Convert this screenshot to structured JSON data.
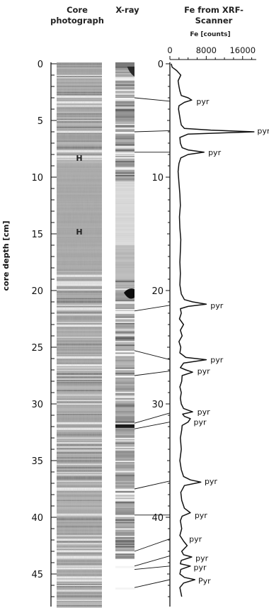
{
  "headers": {
    "core_photo": [
      "Core",
      "photograph"
    ],
    "xray": "X-ray",
    "fe_title": [
      "Fe from XRF-",
      "Scanner"
    ],
    "fe_units": "Fe [counts]"
  },
  "chart_data": {
    "type": "line",
    "ylabel": "core depth [cm]",
    "xlabel": "Fe [counts]",
    "depth_range": [
      0,
      47.5
    ],
    "fe_range": [
      0,
      19000
    ],
    "depth_ticks_left": [
      0,
      5,
      10,
      15,
      20,
      25,
      30,
      35,
      40,
      45
    ],
    "depth_ticks_right": [
      0,
      10,
      20,
      30,
      40
    ],
    "fe_ticks": [
      0,
      8000,
      16000
    ],
    "series": [
      {
        "depth": [
          0,
          0.3,
          0.6,
          1.0,
          1.5,
          2.0,
          2.4,
          2.8,
          3.0,
          3.2,
          3.4,
          3.7,
          4.0,
          4.5,
          5.0,
          5.4,
          5.7,
          5.85,
          6.0,
          6.2,
          6.5,
          7.0,
          7.4,
          7.6,
          7.8,
          8.0,
          8.3,
          8.8,
          9.5,
          10.5,
          11.5,
          12.5,
          13.5,
          14.5,
          15.5,
          16.5,
          17.5,
          18.5,
          19.5,
          20.3,
          20.8,
          21.0,
          21.2,
          21.4,
          21.6,
          22.0,
          22.5,
          23.0,
          23.5,
          24.0,
          24.5,
          25.0,
          25.5,
          25.9,
          26.1,
          26.4,
          26.8,
          27.0,
          27.2,
          27.5,
          28.0,
          28.5,
          29.0,
          29.5,
          30.0,
          30.4,
          30.7,
          30.9,
          31.1,
          31.3,
          31.6,
          31.9,
          32.3,
          33.0,
          34.0,
          35.0,
          35.8,
          36.4,
          36.7,
          36.9,
          37.2,
          37.8,
          38.5,
          39.2,
          39.6,
          39.9,
          40.3,
          41.0,
          41.6,
          42.1,
          42.5,
          43.0,
          43.3,
          43.5,
          43.8,
          44.1,
          44.3,
          44.6,
          45.0,
          45.3,
          45.5,
          45.8,
          46.2,
          46.6,
          47.0
        ],
        "fe": [
          300,
          500,
          1500,
          2400,
          1800,
          2000,
          2200,
          2500,
          4000,
          4800,
          3200,
          2000,
          1900,
          2100,
          2300,
          2500,
          3200,
          9000,
          18500,
          4000,
          2200,
          2300,
          2700,
          4000,
          7500,
          4000,
          2400,
          2000,
          1800,
          2000,
          2200,
          2300,
          2100,
          2200,
          2400,
          2300,
          2200,
          2300,
          2200,
          2500,
          3200,
          5000,
          8000,
          4000,
          2300,
          2500,
          2100,
          3000,
          2300,
          2700,
          2000,
          2400,
          2200,
          3500,
          8000,
          3000,
          2300,
          3500,
          5000,
          2700,
          2600,
          2200,
          2500,
          2300,
          2500,
          3000,
          5000,
          2800,
          3200,
          4500,
          4000,
          2700,
          2600,
          2300,
          2500,
          2200,
          2500,
          3000,
          4500,
          6800,
          3200,
          2400,
          2600,
          3200,
          4500,
          2700,
          2300,
          2600,
          2200,
          3000,
          3800,
          2600,
          3000,
          4800,
          2500,
          2300,
          4500,
          2400,
          2200,
          3200,
          5500,
          3000,
          2200,
          2400,
          2600
        ]
      }
    ],
    "pyr_labels": [
      {
        "text": "pyr",
        "depth": 3.3,
        "fe": 5200
      },
      {
        "text": "pyr",
        "depth": 5.9,
        "fe": 18600
      },
      {
        "text": "pyr",
        "depth": 7.8,
        "fe": 7800
      },
      {
        "text": "pyr",
        "depth": 21.3,
        "fe": 8300
      },
      {
        "text": "pyr",
        "depth": 26.1,
        "fe": 8300
      },
      {
        "text": "pyr",
        "depth": 27.1,
        "fe": 5400
      },
      {
        "text": "pyr",
        "depth": 30.7,
        "fe": 5400
      },
      {
        "text": "pyr",
        "depth": 31.6,
        "fe": 4600
      },
      {
        "text": "pyr",
        "depth": 36.8,
        "fe": 7000
      },
      {
        "text": "pyr",
        "depth": 39.8,
        "fe": 4800
      },
      {
        "text": "pyr",
        "depth": 41.9,
        "fe": 3600
      },
      {
        "text": "pyr",
        "depth": 43.6,
        "fe": 5000
      },
      {
        "text": "pyr",
        "depth": 44.4,
        "fe": 4600
      },
      {
        "text": "Pyr",
        "depth": 45.6,
        "fe": 5600
      }
    ],
    "correlation_lines": [
      {
        "xray_depth": 3.0,
        "fe_depth": 3.3
      },
      {
        "xray_depth": 6.0,
        "fe_depth": 5.9
      },
      {
        "xray_depth": 7.8,
        "fe_depth": 7.8
      },
      {
        "xray_depth": 21.8,
        "fe_depth": 21.3
      },
      {
        "xray_depth": 25.3,
        "fe_depth": 26.1
      },
      {
        "xray_depth": 27.5,
        "fe_depth": 27.1
      },
      {
        "xray_depth": 31.7,
        "fe_depth": 30.8
      },
      {
        "xray_depth": 32.2,
        "fe_depth": 31.6
      },
      {
        "xray_depth": 37.5,
        "fe_depth": 36.8
      },
      {
        "xray_depth": 39.8,
        "fe_depth": 39.8
      },
      {
        "xray_depth": 43.0,
        "fe_depth": 41.9
      },
      {
        "xray_depth": 44.3,
        "fe_depth": 43.4
      },
      {
        "xray_depth": 44.6,
        "fe_depth": 44.3
      },
      {
        "xray_depth": 46.2,
        "fe_depth": 45.5
      }
    ],
    "photo_labels": [
      {
        "text": "H",
        "depth": 8.3
      },
      {
        "text": "H",
        "depth": 14.8
      }
    ]
  },
  "colors": {
    "line": "#111111",
    "photo_base": "#a9a9a9",
    "xray_base": "#b4b4b4"
  }
}
